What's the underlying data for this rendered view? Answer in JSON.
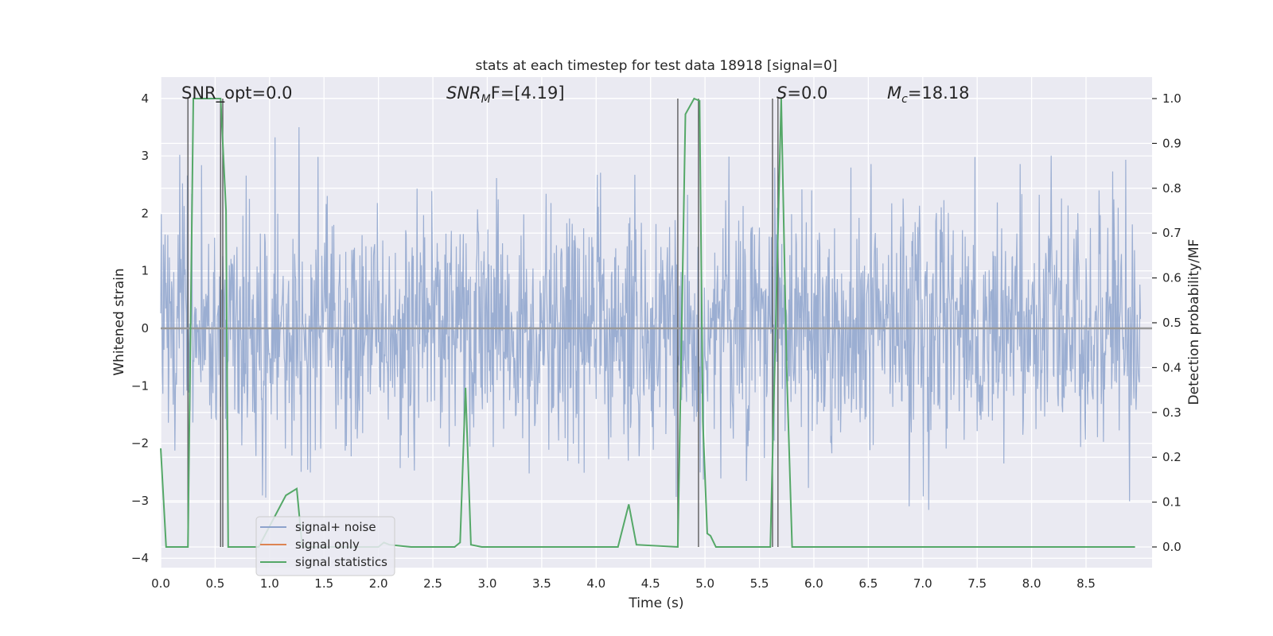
{
  "chart_data": {
    "type": "line",
    "title": "stats at each timestep for test data 18918 [signal=0]",
    "xlabel": "Time (s)",
    "ylabel": "Whitened strain",
    "ylabel_right": "Detection probability/MF",
    "xlim": [
      0,
      9.0
    ],
    "ylim": [
      -4.2,
      4.1
    ],
    "ylim_right": [
      -0.05,
      1.035
    ],
    "grid": true,
    "legend_position": "lower-left",
    "x_ticks": [
      "0.0",
      "0.5",
      "1.0",
      "1.5",
      "2.0",
      "2.5",
      "3.0",
      "3.5",
      "4.0",
      "4.5",
      "5.0",
      "5.5",
      "6.0",
      "6.5",
      "7.0",
      "7.5",
      "8.0",
      "8.5"
    ],
    "y_ticks": [
      "4",
      "3",
      "2",
      "1",
      "0",
      "−1",
      "−2",
      "−3",
      "−4"
    ],
    "y_ticks_right": [
      "1.0",
      "0.9",
      "0.8",
      "0.7",
      "0.6",
      "0.5",
      "0.4",
      "0.3",
      "0.2",
      "0.1",
      "0.0"
    ],
    "annotations": {
      "snr_opt": "SNR_opt=0.0",
      "snr_mf_sym": "SNR",
      "snr_mf_sub": "M",
      "snr_mf_rest": "F=[4.19]",
      "s_sym": "S",
      "s_rest": "=0.0",
      "mc_sym": "M",
      "mc_sub": "c",
      "mc_rest": "=18.18"
    },
    "series": [
      {
        "name": "signal+ noise",
        "color": "#8da3cc",
        "description_values": "dense noise, amplitude roughly -3.8 to 3.5"
      },
      {
        "name": "signal only",
        "color": "#dd8452",
        "values_constant": 0.0
      },
      {
        "name": "signal statistics",
        "color": "#55a868",
        "axis": "right",
        "x": [
          0.0,
          0.05,
          0.25,
          0.3,
          0.55,
          0.6,
          0.62,
          0.9,
          1.15,
          1.25,
          1.3,
          1.5,
          2.0,
          2.05,
          2.1,
          2.3,
          2.7,
          2.75,
          2.8,
          2.85,
          2.95,
          3.5,
          4.2,
          4.3,
          4.37,
          4.75,
          4.82,
          4.9,
          4.95,
          4.98,
          5.02,
          5.05,
          5.1,
          5.6,
          5.7,
          5.75,
          5.8,
          6.0,
          7.0,
          8.0,
          8.95
        ],
        "y": [
          0.22,
          0.0,
          0.0,
          1.0,
          1.0,
          0.75,
          0.0,
          0.0,
          0.115,
          0.13,
          0.0,
          0.0,
          0.0,
          0.01,
          0.005,
          0.0,
          0.0,
          0.01,
          0.355,
          0.005,
          0.0,
          0.0,
          0.0,
          0.095,
          0.005,
          0.0,
          0.965,
          1.0,
          0.995,
          0.28,
          0.03,
          0.025,
          0.0,
          0.0,
          1.0,
          0.4,
          0.0,
          0.0,
          0.0,
          0.0,
          0.0
        ]
      }
    ],
    "vertical_lines_x": [
      0.25,
      0.55,
      0.57,
      4.75,
      4.94,
      5.62,
      5.67
    ]
  }
}
